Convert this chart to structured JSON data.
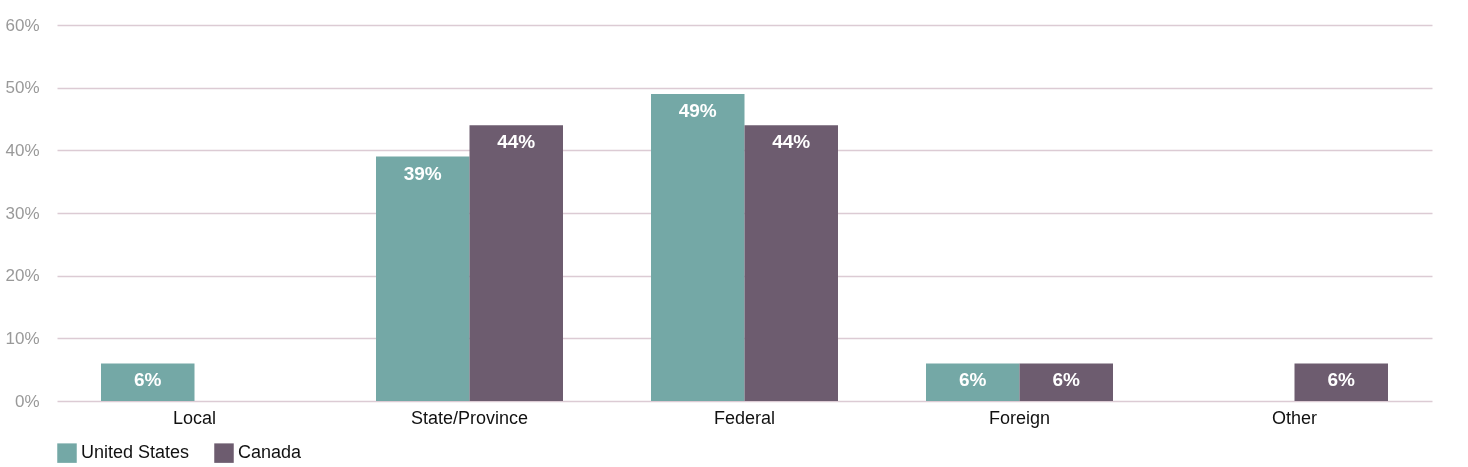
{
  "chart_data": {
    "type": "bar",
    "categories": [
      "Local",
      "State/Province",
      "Federal",
      "Foreign",
      "Other"
    ],
    "series": [
      {
        "name": "United States",
        "color": "#74a8a6",
        "values": [
          6,
          39,
          49,
          6,
          null
        ],
        "value_labels": [
          "6%",
          "39%",
          "49%",
          "6%",
          null
        ]
      },
      {
        "name": "Canada",
        "color": "#6d5c6f",
        "values": [
          null,
          44,
          44,
          6,
          6
        ],
        "value_labels": [
          null,
          "44%",
          "44%",
          "6%",
          "6%"
        ]
      }
    ],
    "ylim": [
      0,
      60
    ],
    "yticks": [
      {
        "value": 0,
        "label": "0%"
      },
      {
        "value": 10,
        "label": "10%"
      },
      {
        "value": 20,
        "label": "20%"
      },
      {
        "value": 30,
        "label": "30%"
      },
      {
        "value": 40,
        "label": "40%"
      },
      {
        "value": 50,
        "label": "50%"
      },
      {
        "value": 60,
        "label": "60%"
      }
    ],
    "grid": "y",
    "legend": "bottom"
  }
}
